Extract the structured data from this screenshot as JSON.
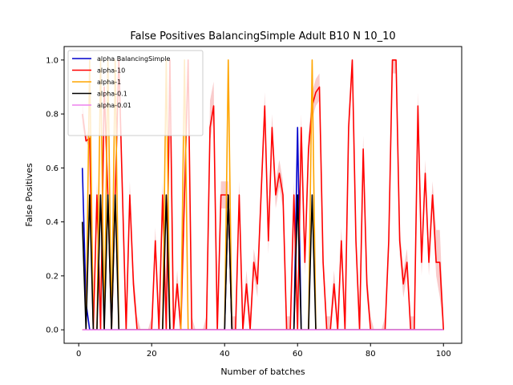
{
  "chart_data": {
    "type": "line",
    "title": "False Positives BalancingSimple Adult B10 N 10_10",
    "xlabel": "Number of batches",
    "ylabel": "False Positives",
    "xlim": [
      -4,
      105
    ],
    "ylim": [
      -0.05,
      1.05
    ],
    "xticks": [
      0,
      20,
      40,
      60,
      80,
      100
    ],
    "xtick_labels": [
      "0",
      "20",
      "40",
      "60",
      "80",
      "100"
    ],
    "yticks": [
      0.0,
      0.2,
      0.4,
      0.6,
      0.8,
      1.0
    ],
    "ytick_labels": [
      "0.0",
      "0.2",
      "0.4",
      "0.6",
      "0.8",
      "1.0"
    ],
    "grid": false,
    "legend_position": "top-left",
    "series": [
      {
        "name": "alpha BalancingSimple",
        "color": "#0000cc",
        "x": [
          1,
          2,
          3,
          4,
          5,
          6,
          7,
          8,
          9,
          10,
          11,
          12,
          40,
          41,
          42,
          59,
          60,
          61,
          100
        ],
        "y": [
          0.6,
          0.1,
          0.0,
          0.0,
          0.0,
          0.0,
          0.0,
          0.0,
          0.0,
          0.0,
          0.0,
          0.0,
          0.0,
          0.5,
          0.0,
          0.0,
          0.75,
          0.0,
          0.0
        ]
      },
      {
        "name": "alpha-10",
        "color": "#ff0000",
        "band_color": "#f4a0a0",
        "x": [
          1,
          2,
          3,
          4,
          5,
          6,
          7,
          8,
          9,
          10,
          11,
          12,
          13,
          14,
          15,
          16,
          17,
          18,
          19,
          20,
          21,
          22,
          23,
          24,
          25,
          26,
          27,
          28,
          29,
          30,
          31,
          32,
          33,
          34,
          35,
          36,
          37,
          38,
          39,
          40,
          41,
          42,
          43,
          44,
          45,
          46,
          47,
          48,
          49,
          50,
          51,
          52,
          53,
          54,
          55,
          56,
          57,
          58,
          59,
          60,
          61,
          62,
          63,
          64,
          65,
          66,
          67,
          68,
          69,
          70,
          71,
          72,
          73,
          74,
          75,
          76,
          77,
          78,
          79,
          80,
          81,
          82,
          83,
          84,
          85,
          86,
          87,
          88,
          89,
          90,
          91,
          92,
          93,
          94,
          95,
          96,
          97,
          98,
          99,
          100
        ],
        "y": [
          0.8,
          0.7,
          0.71,
          0.0,
          0.5,
          0.0,
          0.9,
          0.5,
          0.0,
          0.5,
          1.0,
          0.5,
          0.0,
          0.5,
          0.17,
          0.0,
          0.0,
          0.0,
          0.0,
          0.0,
          0.33,
          0.0,
          0.5,
          0.0,
          1.0,
          0.0,
          0.17,
          0.0,
          0.5,
          1.0,
          0.0,
          0.0,
          0.0,
          0.0,
          0.0,
          0.75,
          0.83,
          0.0,
          0.5,
          0.5,
          0.5,
          0.0,
          0.0,
          0.5,
          0.0,
          0.17,
          0.0,
          0.25,
          0.17,
          0.5,
          0.83,
          0.33,
          0.75,
          0.5,
          0.58,
          0.5,
          0.0,
          0.0,
          0.5,
          0.0,
          0.75,
          0.25,
          0.67,
          0.83,
          0.88,
          0.9,
          0.25,
          0.0,
          0.0,
          0.17,
          0.0,
          0.33,
          0.0,
          0.75,
          1.0,
          0.33,
          0.0,
          0.67,
          0.17,
          0.0,
          0.0,
          0.0,
          0.0,
          0.0,
          0.33,
          1.0,
          1.0,
          0.33,
          0.17,
          0.25,
          0.0,
          0.0,
          0.83,
          0.25,
          0.58,
          0.25,
          0.5,
          0.25,
          0.25,
          0.0
        ],
        "band_low": [
          0.75,
          0.7,
          0.67,
          0.0,
          0.45,
          0.0,
          0.85,
          0.45,
          0.0,
          0.45,
          0.95,
          0.45,
          0.0,
          0.45,
          0.12,
          0.0,
          0.0,
          0.0,
          0.0,
          0.0,
          0.28,
          0.0,
          0.45,
          0.0,
          0.95,
          0.0,
          0.12,
          0.0,
          0.45,
          0.95,
          0.0,
          0.0,
          0.0,
          0.0,
          0.0,
          0.7,
          0.78,
          0.0,
          0.45,
          0.45,
          0.45,
          0.0,
          0.0,
          0.45,
          0.0,
          0.12,
          0.0,
          0.2,
          0.12,
          0.45,
          0.78,
          0.28,
          0.7,
          0.45,
          0.53,
          0.45,
          0.0,
          0.0,
          0.45,
          0.0,
          0.7,
          0.2,
          0.62,
          0.78,
          0.83,
          0.85,
          0.2,
          0.0,
          0.0,
          0.12,
          0.0,
          0.28,
          0.0,
          0.7,
          0.95,
          0.28,
          0.0,
          0.62,
          0.12,
          0.0,
          0.0,
          0.0,
          0.0,
          0.0,
          0.28,
          0.95,
          0.95,
          0.28,
          0.12,
          0.2,
          0.0,
          0.0,
          0.78,
          0.2,
          0.53,
          0.2,
          0.45,
          0.2,
          0.12,
          0.0
        ],
        "band_high": [
          0.85,
          0.72,
          0.75,
          0.05,
          0.55,
          0.05,
          0.95,
          0.55,
          0.05,
          0.55,
          1.0,
          0.55,
          0.05,
          0.55,
          0.22,
          0.05,
          0.0,
          0.0,
          0.0,
          0.05,
          0.38,
          0.05,
          0.55,
          0.05,
          1.0,
          0.05,
          0.22,
          0.05,
          0.55,
          1.0,
          0.05,
          0.0,
          0.0,
          0.0,
          0.05,
          0.85,
          0.92,
          0.05,
          0.55,
          0.55,
          0.55,
          0.05,
          0.05,
          0.55,
          0.05,
          0.22,
          0.05,
          0.3,
          0.22,
          0.55,
          0.88,
          0.38,
          0.8,
          0.55,
          0.63,
          0.55,
          0.05,
          0.05,
          0.55,
          0.05,
          0.8,
          0.3,
          0.72,
          0.88,
          0.93,
          0.95,
          0.3,
          0.05,
          0.05,
          0.22,
          0.05,
          0.38,
          0.05,
          0.8,
          1.0,
          0.38,
          0.05,
          0.72,
          0.22,
          0.05,
          0.0,
          0.0,
          0.0,
          0.05,
          0.38,
          1.0,
          1.0,
          0.38,
          0.22,
          0.3,
          0.05,
          0.05,
          0.88,
          0.3,
          0.63,
          0.3,
          0.55,
          0.37,
          0.37,
          0.05
        ]
      },
      {
        "name": "alpha-1",
        "color": "#ffa500",
        "x": [
          1,
          2,
          3,
          4,
          5,
          6,
          7,
          8,
          9,
          10,
          11,
          23,
          24,
          25,
          26,
          27,
          28,
          29,
          30,
          31,
          40,
          41,
          42,
          63,
          64,
          65,
          100
        ],
        "y": [
          0.0,
          0.0,
          1.0,
          0.0,
          0.0,
          1.0,
          0.0,
          1.0,
          0.0,
          1.0,
          0.0,
          0.0,
          1.0,
          0.0,
          0.0,
          0.0,
          0.0,
          1.0,
          0.0,
          0.0,
          0.0,
          1.0,
          0.0,
          0.0,
          1.0,
          0.0,
          0.0
        ]
      },
      {
        "name": "alpha-0.1",
        "color": "#000000",
        "x": [
          1,
          2,
          3,
          4,
          5,
          6,
          7,
          8,
          9,
          10,
          11,
          20,
          23,
          24,
          25,
          26,
          40,
          41,
          42,
          43,
          59,
          60,
          61,
          62,
          63,
          64,
          65,
          100
        ],
        "y": [
          0.4,
          0.0,
          0.5,
          0.0,
          0.0,
          0.5,
          0.0,
          0.5,
          0.0,
          0.5,
          0.0,
          0.0,
          0.0,
          0.5,
          0.0,
          0.0,
          0.0,
          0.5,
          0.0,
          0.0,
          0.0,
          0.5,
          0.0,
          0.0,
          0.0,
          0.5,
          0.0,
          0.0
        ]
      },
      {
        "name": "alpha-0.01",
        "color": "#ee82ee",
        "x": [
          1,
          100
        ],
        "y": [
          0.0,
          0.0
        ]
      }
    ]
  }
}
